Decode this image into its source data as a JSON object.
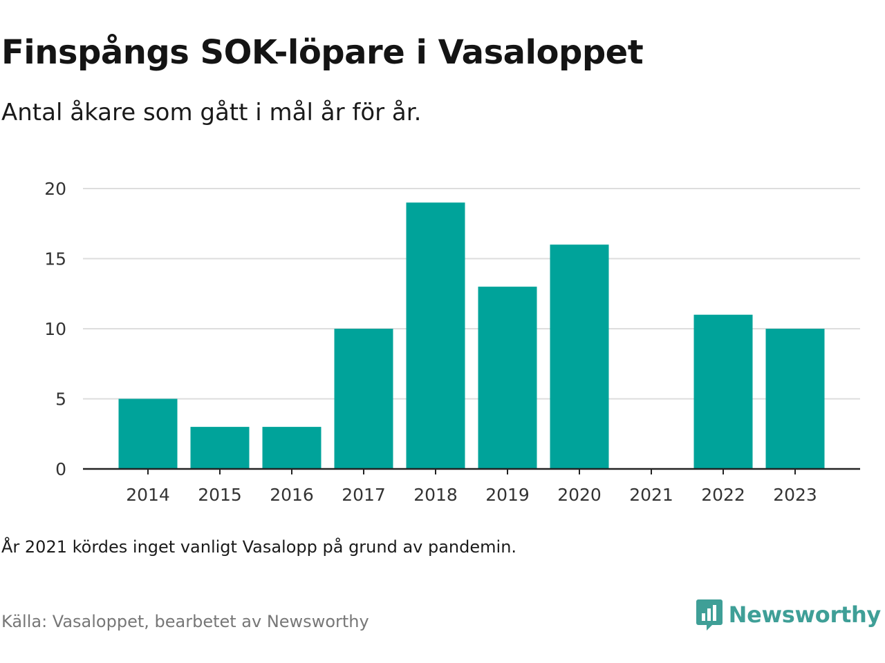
{
  "header": {
    "title": "Finspångs SOK-löpare i Vasaloppet",
    "subtitle": "Antal åkare som gått i mål år för år."
  },
  "footer": {
    "note": "År 2021 kördes inget vanligt Vasalopp på grund av pandemin.",
    "source": "Källa: Vasaloppet, bearbetet av Newsworthy",
    "brand": "Newsworthy",
    "brand_icon": "newsworthy-logo-icon"
  },
  "colors": {
    "bar": "#00a39a",
    "grid": "#dddddd",
    "axis": "#222222",
    "brand": "#3f9f97"
  },
  "chart_data": {
    "type": "bar",
    "categories": [
      "2014",
      "2015",
      "2016",
      "2017",
      "2018",
      "2019",
      "2020",
      "2021",
      "2022",
      "2023"
    ],
    "values": [
      5,
      3,
      3,
      10,
      19,
      13,
      16,
      0,
      11,
      10
    ],
    "title": "Finspångs SOK-löpare i Vasaloppet",
    "subtitle": "Antal åkare som gått i mål år för år.",
    "xlabel": "",
    "ylabel": "",
    "ylim": [
      0,
      20
    ],
    "yticks": [
      0,
      5,
      10,
      15,
      20
    ],
    "grid": true,
    "legend": "none"
  }
}
